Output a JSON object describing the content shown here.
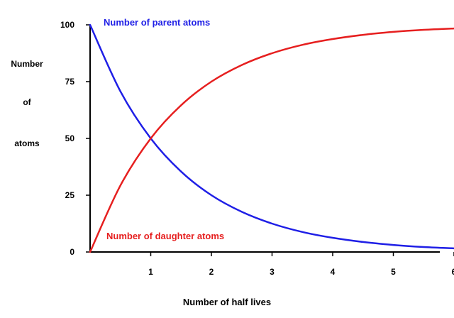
{
  "chart_data": {
    "type": "line",
    "title": "",
    "xlabel": "Number of half lives",
    "ylabel_lines": [
      "Number",
      "of",
      "atoms"
    ],
    "xlim": [
      0,
      6.6
    ],
    "ylim": [
      0,
      100
    ],
    "x_ticks": [
      1,
      2,
      3,
      4,
      5,
      6
    ],
    "x_tick_labels": [
      "1",
      "2",
      "3",
      "4",
      "5",
      "6"
    ],
    "y_ticks": [
      0,
      25,
      50,
      75,
      100
    ],
    "y_tick_labels": [
      "0",
      "25",
      "50",
      "75",
      "100"
    ],
    "grid": false,
    "series": [
      {
        "name": "Number of parent atoms",
        "color": "#1f1fe6",
        "x": [
          0,
          0.5,
          1,
          1.5,
          2,
          2.5,
          3,
          3.5,
          4,
          4.5,
          5,
          5.5,
          6,
          6.6
        ],
        "y": [
          100,
          70.7,
          50,
          35.4,
          25,
          17.7,
          12.5,
          8.8,
          6.25,
          4.4,
          3.1,
          2.2,
          1.6,
          1.0
        ]
      },
      {
        "name": "Number of daughter atoms",
        "color": "#e61f1f",
        "x": [
          0,
          0.5,
          1,
          1.5,
          2,
          2.5,
          3,
          3.5,
          4,
          4.5,
          5,
          5.5,
          6
        ],
        "y": [
          0,
          29.3,
          50,
          64.6,
          75,
          82.3,
          87.5,
          91.2,
          93.75,
          95.6,
          96.9,
          97.8,
          98.4
        ]
      }
    ]
  }
}
